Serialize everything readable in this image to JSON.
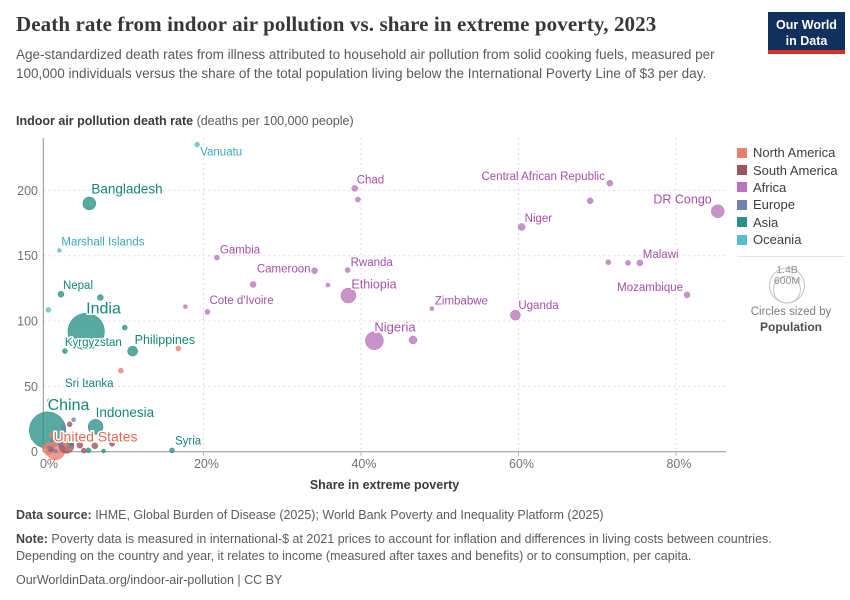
{
  "header": {
    "title": "Death rate from indoor air pollution vs. share in extreme poverty, 2023",
    "subtitle": "Age-standardized death rates from illness attributed to household air pollution from solid cooking fuels, measured per 100,000 individuals versus the share of the total population living below the International Poverty Line of $3 per day.",
    "logo_line1": "Our World",
    "logo_line2": "in Data"
  },
  "axis": {
    "y_title_bold": "Indoor air pollution death rate",
    "y_title_unit": " (deaths per 100,000 people)",
    "x_title": "Share in extreme poverty",
    "y_ticks": [
      {
        "v": 0,
        "label": "0"
      },
      {
        "v": 50,
        "label": "50"
      },
      {
        "v": 100,
        "label": "100"
      },
      {
        "v": 150,
        "label": "150"
      },
      {
        "v": 200,
        "label": "200"
      }
    ],
    "x_ticks": [
      {
        "v": 0,
        "label": "0%"
      },
      {
        "v": 20,
        "label": "20%"
      },
      {
        "v": 40,
        "label": "40%"
      },
      {
        "v": 60,
        "label": "60%"
      },
      {
        "v": 80,
        "label": "80%"
      }
    ]
  },
  "legend": {
    "size_big": "1.4B",
    "size_small": "600M",
    "size_caption": "Circles sized by",
    "size_caption_bold": "Population"
  },
  "footer": {
    "data_source_label": "Data source:",
    "data_source": " IHME, Global Burden of Disease (2025); World Bank Poverty and Inequality Platform (2025)",
    "note_label": "Note:",
    "note": " Poverty data is measured in international-$ at 2021 prices to account for inflation and differences in living costs between countries. Depending on the country and year, it relates to income (measured after taxes and benefits) or to consumption, per capita.",
    "url_line": "OurWorldinData.org/indoor-air-pollution | CC BY"
  },
  "chart_data": {
    "type": "scatter",
    "title": "Death rate from indoor air pollution vs. share in extreme poverty, 2023",
    "xlabel": "Share in extreme poverty",
    "ylabel": "Indoor air pollution death rate (deaths per 100,000 people)",
    "x_unit": "%",
    "y_unit": "deaths per 100,000 people",
    "xlim": [
      0,
      87
    ],
    "ylim": [
      0,
      240
    ],
    "grid": true,
    "legend_position": "right",
    "sized_by": "Population",
    "series": [
      {
        "name": "North America",
        "color": "#eb7f6f",
        "label_color": "#e4684f",
        "points": [
          {
            "x": 1.2,
            "y": 1,
            "r": 9.5,
            "label": "United States",
            "fs": 14,
            "dx": -2,
            "dy": -9,
            "anchor": "start"
          },
          {
            "x": 0.3,
            "y": 2.5,
            "r": 6
          },
          {
            "x": 16.8,
            "y": 79,
            "r": 2.5
          },
          {
            "x": 9.5,
            "y": 62,
            "r": 2.5
          },
          {
            "x": 2.5,
            "y": 5.5,
            "r": 2
          },
          {
            "x": 0.6,
            "y": 13,
            "r": 2
          },
          {
            "x": 0.4,
            "y": 39,
            "r": 2
          }
        ]
      },
      {
        "name": "South America",
        "color": "#9e5560",
        "label_color": "#8d3a44",
        "points": [
          {
            "x": 2.6,
            "y": 4.5,
            "r": 7.5
          },
          {
            "x": 4.3,
            "y": 5,
            "r": 3
          },
          {
            "x": 6.2,
            "y": 4.5,
            "r": 3
          },
          {
            "x": 3,
            "y": 21,
            "r": 2.5
          },
          {
            "x": 8.4,
            "y": 6,
            "r": 2.5
          },
          {
            "x": 0.6,
            "y": 2,
            "r": 2.5
          },
          {
            "x": 4.8,
            "y": 0.8,
            "r": 2.5
          }
        ]
      },
      {
        "name": "Africa",
        "color": "#b873bb",
        "label_color": "#a84fa8",
        "points": [
          {
            "x": 39.2,
            "y": 201.5,
            "r": 3,
            "label": "Chad",
            "dx": 2,
            "dy": -5,
            "anchor": "start"
          },
          {
            "x": 71.6,
            "y": 205.5,
            "r": 3,
            "label": "Central African Republic",
            "dx": -5,
            "dy": -3,
            "anchor": "end"
          },
          {
            "x": 85.3,
            "y": 184,
            "r": 6.5,
            "label": "DR Congo",
            "fs": 12.5,
            "dx": -6,
            "dy": -8,
            "anchor": "end"
          },
          {
            "x": 60.4,
            "y": 172,
            "r": 3.5,
            "label": "Niger",
            "dx": 3,
            "dy": -5,
            "anchor": "start"
          },
          {
            "x": 21.7,
            "y": 148.5,
            "r": 2.5,
            "label": "Gambia",
            "dx": 3,
            "dy": -4,
            "anchor": "start"
          },
          {
            "x": 75.4,
            "y": 144.5,
            "r": 3,
            "label": "Malawi",
            "dx": 3,
            "dy": -5,
            "anchor": "start"
          },
          {
            "x": 34.1,
            "y": 138.5,
            "r": 3,
            "label": "Cameroon",
            "dx": -4,
            "dy": 2,
            "anchor": "end"
          },
          {
            "x": 38.3,
            "y": 139,
            "r": 2.5,
            "label": "Rwanda",
            "dx": 3,
            "dy": -4,
            "anchor": "start"
          },
          {
            "x": 38.4,
            "y": 119.5,
            "r": 7.5,
            "label": "Ethiopia",
            "fs": 12.5,
            "dx": 3,
            "dy": -7,
            "anchor": "start"
          },
          {
            "x": 20.5,
            "y": 107,
            "r": 2.5,
            "label": "Cote d'Ivoire",
            "dx": 2,
            "dy": -8,
            "anchor": "start"
          },
          {
            "x": 49,
            "y": 109.5,
            "r": 2,
            "label": "Zimbabwe",
            "dx": 3,
            "dy": -4,
            "anchor": "start"
          },
          {
            "x": 59.6,
            "y": 104.5,
            "r": 5,
            "label": "Uganda",
            "dx": 3,
            "dy": -6,
            "anchor": "start"
          },
          {
            "x": 81.4,
            "y": 120,
            "r": 3,
            "label": "Mozambique",
            "dx": -4,
            "dy": -4,
            "anchor": "end"
          },
          {
            "x": 41.7,
            "y": 85,
            "r": 9,
            "label": "Nigeria",
            "fs": 13,
            "dx": 0,
            "dy": -9,
            "anchor": "start"
          },
          {
            "x": 39.6,
            "y": 193,
            "r": 2.5
          },
          {
            "x": 69.1,
            "y": 192,
            "r": 3
          },
          {
            "x": 71.4,
            "y": 145,
            "r": 2.5
          },
          {
            "x": 73.9,
            "y": 144.5,
            "r": 2.5
          },
          {
            "x": 26.3,
            "y": 128,
            "r": 3
          },
          {
            "x": 35.8,
            "y": 127.5,
            "r": 2
          },
          {
            "x": 17.7,
            "y": 111,
            "r": 2
          },
          {
            "x": 46.6,
            "y": 85.5,
            "r": 4
          }
        ]
      },
      {
        "name": "Europe",
        "color": "#7184ad",
        "label_color": "#5b74a3",
        "points": [
          {
            "x": 3.5,
            "y": 24.5,
            "r": 2
          },
          {
            "x": 2.2,
            "y": 18.5,
            "r": 2.5
          },
          {
            "x": 3.8,
            "y": 13.5,
            "r": 2
          },
          {
            "x": 2.4,
            "y": 12.8,
            "r": 2
          },
          {
            "x": 0.8,
            "y": 9,
            "r": 2
          },
          {
            "x": 1.8,
            "y": 6,
            "r": 2
          },
          {
            "x": 0.4,
            "y": 3,
            "r": 2
          },
          {
            "x": 1.2,
            "y": 0.5,
            "r": 2
          }
        ]
      },
      {
        "name": "Asia",
        "color": "#2a9187",
        "label_color": "#14867a",
        "points": [
          {
            "x": 5.5,
            "y": 190,
            "r": 6.5,
            "label": "Bangladesh",
            "fs": 13.5,
            "dx": 2,
            "dy": -10,
            "anchor": "start"
          },
          {
            "x": 1.9,
            "y": 120.5,
            "r": 3,
            "label": "Nepal",
            "dx": 2,
            "dy": -5,
            "anchor": "start"
          },
          {
            "x": 5.1,
            "y": 92,
            "r": 18.3,
            "label": "India",
            "fs": 16,
            "dx": 0,
            "dy": -18,
            "anchor": "start"
          },
          {
            "x": 2.4,
            "y": 77,
            "r": 2.5,
            "label": "Kyrgyzstan",
            "dx": 0,
            "dy": -5,
            "anchor": "start"
          },
          {
            "x": 11,
            "y": 77,
            "r": 5,
            "label": "Philippines",
            "fs": 12.5,
            "dx": 2,
            "dy": -7,
            "anchor": "start"
          },
          {
            "x": 5.2,
            "y": 52.5,
            "r": 2.5,
            "label": "Sri Lanka",
            "dx": -22,
            "dy": 4,
            "anchor": "start"
          },
          {
            "x": 0.2,
            "y": 16.5,
            "r": 18.3,
            "label": "China",
            "fs": 16,
            "dx": 0,
            "dy": -20,
            "anchor": "start"
          },
          {
            "x": 6.3,
            "y": 19,
            "r": 7.5,
            "label": "Indonesia",
            "fs": 13.5,
            "dx": 0,
            "dy": -10,
            "anchor": "start"
          },
          {
            "x": 16,
            "y": 1,
            "r": 2.5,
            "label": "Syria",
            "dx": 3,
            "dy": -6,
            "anchor": "start"
          },
          {
            "x": 6.9,
            "y": 118,
            "r": 3
          },
          {
            "x": 10,
            "y": 95,
            "r": 2.5
          },
          {
            "x": 7.3,
            "y": 14,
            "r": 2.5
          },
          {
            "x": 8.2,
            "y": 8,
            "r": 2.5
          },
          {
            "x": 5.4,
            "y": 1,
            "r": 2.5
          },
          {
            "x": 7.3,
            "y": 0.5,
            "r": 2
          },
          {
            "x": 3.2,
            "y": 6,
            "r": 2
          }
        ]
      },
      {
        "name": "Oceania",
        "color": "#58bfca",
        "label_color": "#3aa8b8",
        "points": [
          {
            "x": 19.2,
            "y": 235,
            "r": 2.5,
            "label": "Vanuatu",
            "dx": 3,
            "dy": 11,
            "anchor": "start"
          },
          {
            "x": 1.7,
            "y": 154,
            "r": 2,
            "label": "Marshall Islands",
            "dx": 2,
            "dy": -5,
            "anchor": "start"
          },
          {
            "x": 0.3,
            "y": 108.5,
            "r": 2.5
          }
        ]
      }
    ]
  }
}
